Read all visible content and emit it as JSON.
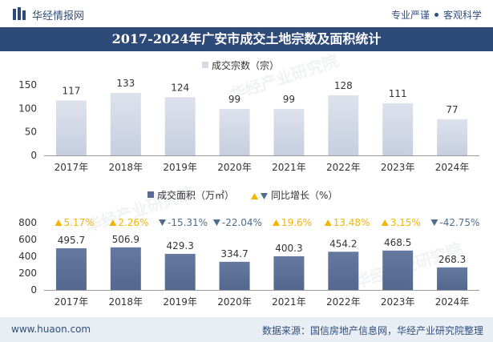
{
  "header": {
    "logo_text": "华经情报网",
    "slogan_left": "专业严谨",
    "slogan_right": "客观科学"
  },
  "title": "2017-2024年广安市成交土地宗数及面积统计",
  "footer": {
    "website": "www.huaon.com",
    "source": "数据来源：国信房地产信息网，华经产业研究院整理"
  },
  "watermark": "华经产业研究院",
  "colors": {
    "brand": "#2e4a78",
    "bar_top": "#dfe3ec",
    "bar_bottom": "#5a6d97",
    "up": "#f5b400",
    "down": "#4e6d8c",
    "axis_text": "#333333"
  },
  "chart_data": [
    {
      "type": "bar",
      "legend": "成交宗数（宗）",
      "legend_position": "top-center",
      "categories": [
        "2017年",
        "2018年",
        "2019年",
        "2020年",
        "2021年",
        "2022年",
        "2023年",
        "2024年"
      ],
      "values": [
        117,
        133,
        124,
        99,
        99,
        128,
        111,
        77
      ],
      "value_labels": [
        "117",
        "133",
        "124",
        "99",
        "99",
        "128",
        "111",
        "77"
      ],
      "ylim": [
        0,
        150
      ],
      "yticks": [
        "0",
        "50",
        "100",
        "150"
      ],
      "grid": false
    },
    {
      "type": "bar",
      "legend": "成交面积（万㎡）",
      "legend2": "同比增长（%）",
      "legend_position": "top-center",
      "categories": [
        "2017年",
        "2018年",
        "2019年",
        "2020年",
        "2021年",
        "2022年",
        "2023年",
        "2024年"
      ],
      "values": [
        495.7,
        506.9,
        429.3,
        334.7,
        400.3,
        454.2,
        468.5,
        268.3
      ],
      "value_labels": [
        "495.7",
        "506.9",
        "429.3",
        "334.7",
        "400.3",
        "454.2",
        "468.5",
        "268.3"
      ],
      "growth": [
        5.17,
        2.26,
        -15.31,
        -22.04,
        19.6,
        13.48,
        3.15,
        -42.75
      ],
      "growth_labels": [
        "5.17%",
        "2.26%",
        "-15.31%",
        "-22.04%",
        "19.6%",
        "13.48%",
        "3.15%",
        "-42.75%"
      ],
      "ylim": [
        0,
        800
      ],
      "yticks": [
        "0",
        "200",
        "400",
        "600",
        "800"
      ],
      "grid": false
    }
  ]
}
